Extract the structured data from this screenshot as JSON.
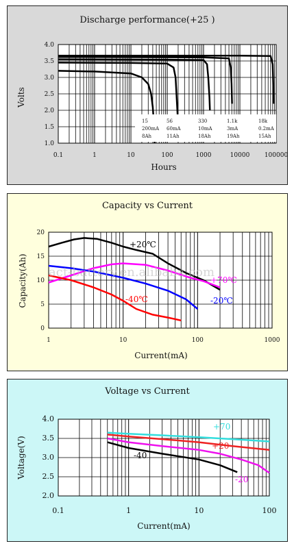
{
  "charts": {
    "discharge": {
      "title": "Discharge performance(+25  )",
      "ylabel": "Volts",
      "xlabel": "Hours",
      "bg": "#d9d9d9",
      "table_rows": [
        [
          "15",
          "56",
          "330",
          "1.1k",
          "18k"
        ],
        [
          "200mA",
          "60mA",
          "10mA",
          "3mA",
          "0.2mA"
        ],
        [
          "8Ah",
          "11Ah",
          "18Ah",
          "19Ah",
          "15Ah"
        ]
      ]
    },
    "capacity": {
      "title": "Capacity vs Current",
      "ylabel": "Capacity(Ah)",
      "xlabel": "Current(mA)",
      "bg": "#ffffdd",
      "watermark": "act-battery.en.alibaba.com"
    },
    "voltage": {
      "title": "Voltage vs Current",
      "ylabel": "Voltage(V)",
      "xlabel": "Current(mA)",
      "bg": "#ccf7f7"
    }
  },
  "chart_data": [
    {
      "type": "line",
      "title": "Discharge performance(+25  )",
      "xlabel": "Hours",
      "ylabel": "Volts",
      "xscale": "log",
      "xlim": [
        0.1,
        100000
      ],
      "ylim": [
        1.0,
        4.0
      ],
      "xticks": [
        "0.1",
        "1",
        "10",
        "100",
        "1000",
        "10000",
        "100000"
      ],
      "yticks": [
        "1.0",
        "1.5",
        "2.0",
        "2.5",
        "3.0",
        "3.5",
        "4.0"
      ],
      "grid": true,
      "series": [
        {
          "color": "#000000",
          "x": [
            0.1,
            1,
            10,
            20,
            30,
            36,
            40,
            43,
            45
          ],
          "y": [
            3.2,
            3.18,
            3.12,
            3.0,
            2.8,
            2.5,
            2.1,
            1.6,
            1.0
          ]
        },
        {
          "color": "#000000",
          "x": [
            0.1,
            10,
            100,
            150,
            170,
            180,
            190,
            200
          ],
          "y": [
            3.45,
            3.44,
            3.42,
            3.3,
            3.0,
            2.5,
            2.0,
            1.5
          ]
        },
        {
          "color": "#000000",
          "x": [
            0.1,
            100,
            1000,
            1250,
            1350,
            1450,
            1500
          ],
          "y": [
            3.55,
            3.54,
            3.53,
            3.4,
            3.0,
            2.4,
            2.0
          ]
        },
        {
          "color": "#000000",
          "x": [
            0.1,
            1000,
            5000,
            5600,
            5900,
            6100
          ],
          "y": [
            3.62,
            3.61,
            3.58,
            3.3,
            2.8,
            2.2
          ]
        },
        {
          "color": "#000000",
          "x": [
            0.1,
            10000,
            70000,
            80000,
            83000,
            85000
          ],
          "y": [
            3.66,
            3.66,
            3.65,
            3.4,
            2.8,
            2.2
          ]
        }
      ]
    },
    {
      "type": "line",
      "title": "Capacity vs Current",
      "xlabel": "Current(mA)",
      "ylabel": "Capacity(Ah)",
      "xscale": "log",
      "xlim": [
        1,
        1000
      ],
      "ylim": [
        0,
        20
      ],
      "xticks": [
        "1",
        "10",
        "100",
        "1000"
      ],
      "yticks": [
        "0",
        "5",
        "10",
        "15",
        "20"
      ],
      "grid": true,
      "series": [
        {
          "name": "+20℃",
          "color": "#000000",
          "x": [
            1,
            1.5,
            2.2,
            3,
            4.5,
            7,
            10,
            15,
            25,
            40,
            70,
            120,
            200
          ],
          "y": [
            17,
            17.8,
            18.5,
            18.8,
            18.6,
            17.8,
            17,
            16.3,
            15.5,
            13.5,
            11.5,
            10,
            8
          ]
        },
        {
          "name": "+70℃",
          "color": "#ff00ff",
          "x": [
            1,
            2,
            4,
            7,
            10,
            20,
            40,
            80,
            120,
            200
          ],
          "y": [
            9.5,
            11,
            12.5,
            13.3,
            13.5,
            13.2,
            12,
            10.5,
            9.8,
            8.5
          ]
        },
        {
          "name": "-20℃",
          "color": "#0000ff",
          "x": [
            1,
            2,
            4,
            10,
            20,
            40,
            70,
            100
          ],
          "y": [
            13,
            12.5,
            11.8,
            10.5,
            9.3,
            7.8,
            6,
            4
          ]
        },
        {
          "name": "-40℃",
          "color": "#ff0000",
          "x": [
            1,
            2,
            4,
            7,
            10,
            15,
            25,
            40,
            60
          ],
          "y": [
            11,
            10,
            8.5,
            7,
            5.7,
            4,
            2.8,
            2.2,
            1.6
          ]
        }
      ]
    },
    {
      "type": "line",
      "title": "Voltage vs Current",
      "xlabel": "Current(mA)",
      "ylabel": "Voltage(V)",
      "xscale": "log",
      "xlim": [
        0.1,
        100
      ],
      "ylim": [
        2.0,
        4.0
      ],
      "xticks": [
        "0.1",
        "1",
        "10",
        "100"
      ],
      "yticks": [
        "2.0",
        "2.5",
        "3.0",
        "3.5",
        "4.0"
      ],
      "grid": true,
      "series": [
        {
          "name": "+70",
          "color": "#33dddd",
          "x": [
            0.5,
            1,
            3,
            10,
            30,
            100
          ],
          "y": [
            3.65,
            3.62,
            3.58,
            3.53,
            3.48,
            3.42
          ]
        },
        {
          "name": "+20",
          "color": "#ee2222",
          "x": [
            0.5,
            1,
            3,
            10,
            30,
            100
          ],
          "y": [
            3.6,
            3.55,
            3.48,
            3.4,
            3.3,
            3.2
          ]
        },
        {
          "name": "-20",
          "color": "#ee11ee",
          "x": [
            0.5,
            1,
            3,
            10,
            20,
            40,
            70,
            100
          ],
          "y": [
            3.5,
            3.4,
            3.3,
            3.2,
            3.1,
            2.95,
            2.8,
            2.6
          ]
        },
        {
          "name": "-40",
          "color": "#000000",
          "x": [
            0.5,
            1,
            3,
            10,
            20,
            35
          ],
          "y": [
            3.4,
            3.25,
            3.1,
            2.95,
            2.8,
            2.62
          ]
        }
      ]
    }
  ]
}
